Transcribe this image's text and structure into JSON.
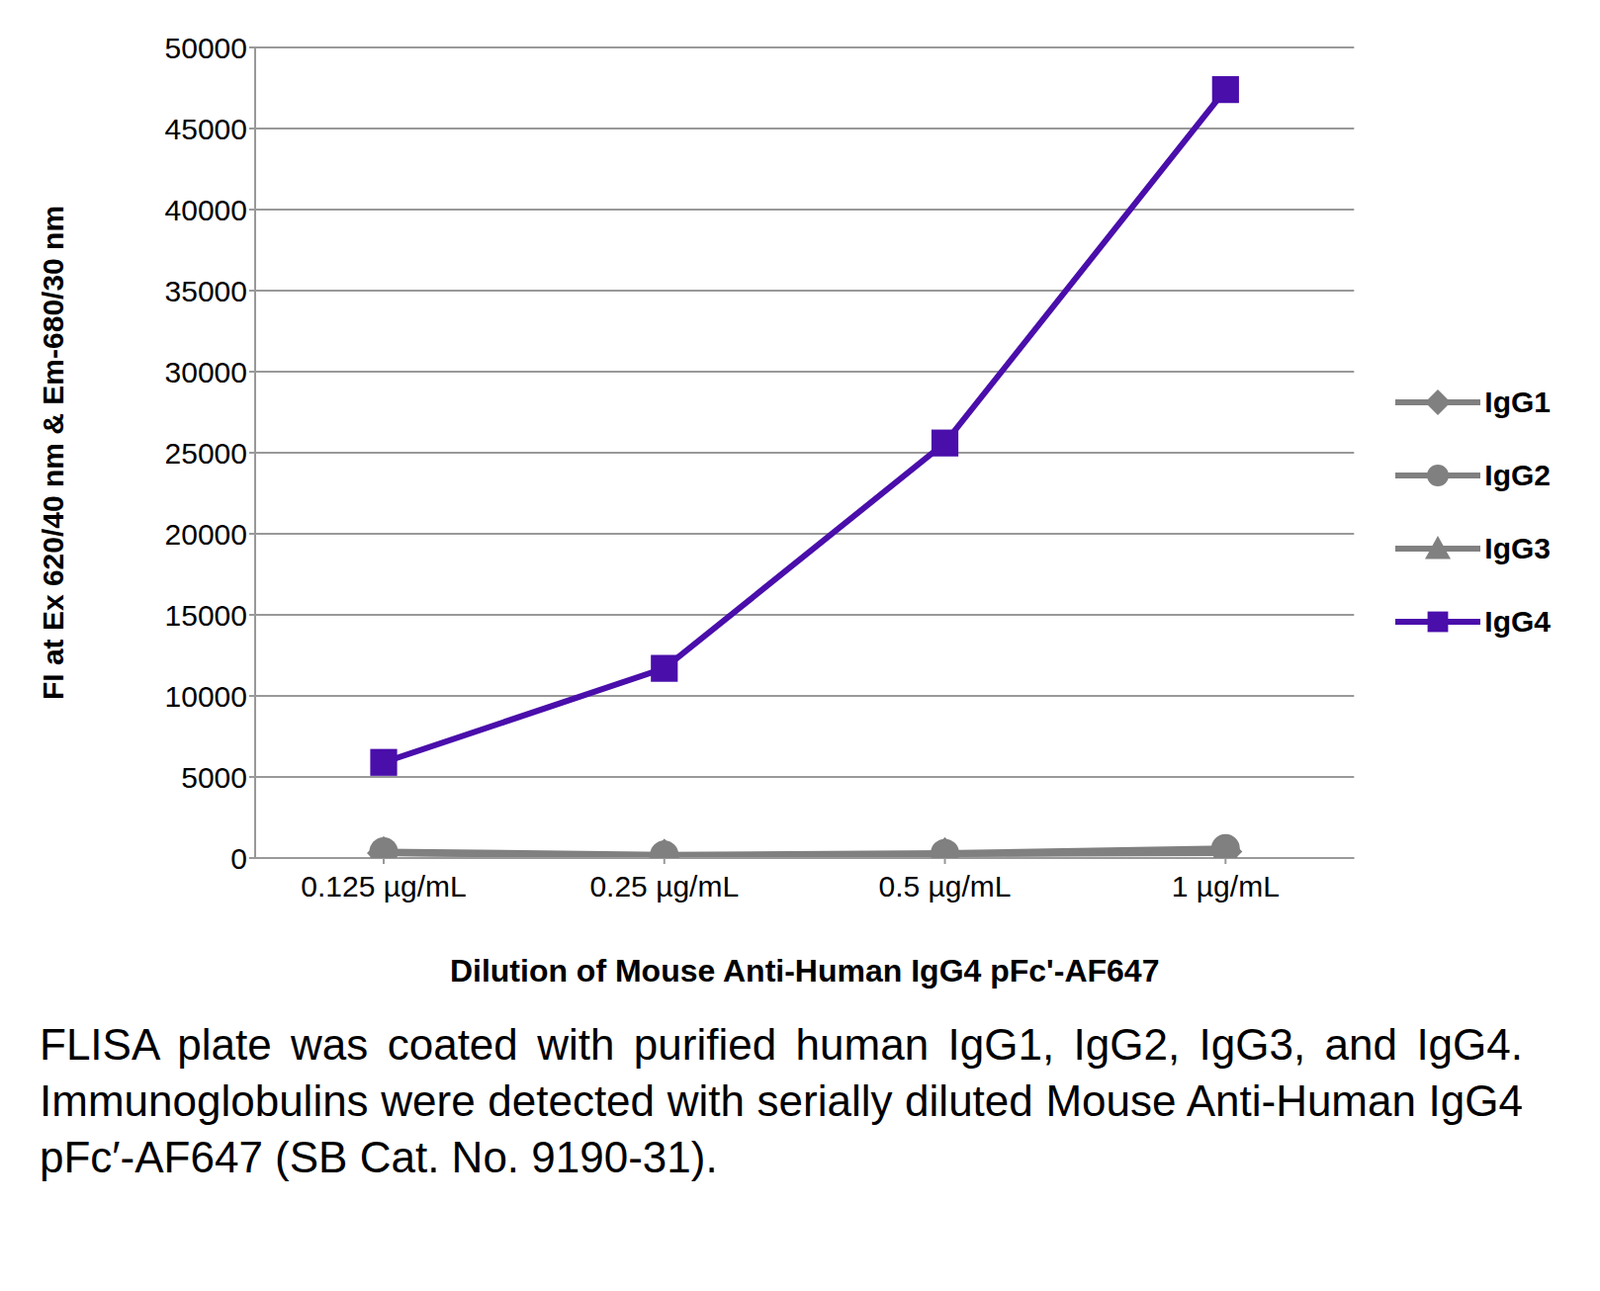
{
  "chart_data": {
    "type": "line",
    "categories": [
      "0.125 µg/mL",
      "0.25 µg/mL",
      "0.5 µg/mL",
      "1 µg/mL"
    ],
    "x_label": "Dilution of Mouse Anti-Human IgG4 pFc'-AF647",
    "y_label": "FI at Ex 620/40 nm & Em-680/30 nm",
    "ylim": [
      0,
      50000
    ],
    "yticks": [
      0,
      5000,
      10000,
      15000,
      20000,
      25000,
      30000,
      35000,
      40000,
      45000,
      50000
    ],
    "grid": true,
    "legend": "right",
    "series": [
      {
        "name": "IgG1",
        "color": "#808080",
        "marker": "diamond",
        "values": [
          300,
          150,
          250,
          400
        ]
      },
      {
        "name": "IgG2",
        "color": "#808080",
        "marker": "circle",
        "values": [
          400,
          200,
          300,
          600
        ]
      },
      {
        "name": "IgG3",
        "color": "#808080",
        "marker": "triangle",
        "values": [
          300,
          150,
          250,
          300
        ]
      },
      {
        "name": "IgG4",
        "color": "#4a0eab",
        "marker": "square",
        "values": [
          5900,
          11700,
          25600,
          47400
        ]
      }
    ],
    "caption": "FLISA plate was coated with purified human IgG1, IgG2, IgG3, and IgG4.  Immunoglobulins were detected with serially diluted Mouse Anti-Human IgG4 pFc′-AF647 (SB Cat. No. 9190-31)."
  }
}
